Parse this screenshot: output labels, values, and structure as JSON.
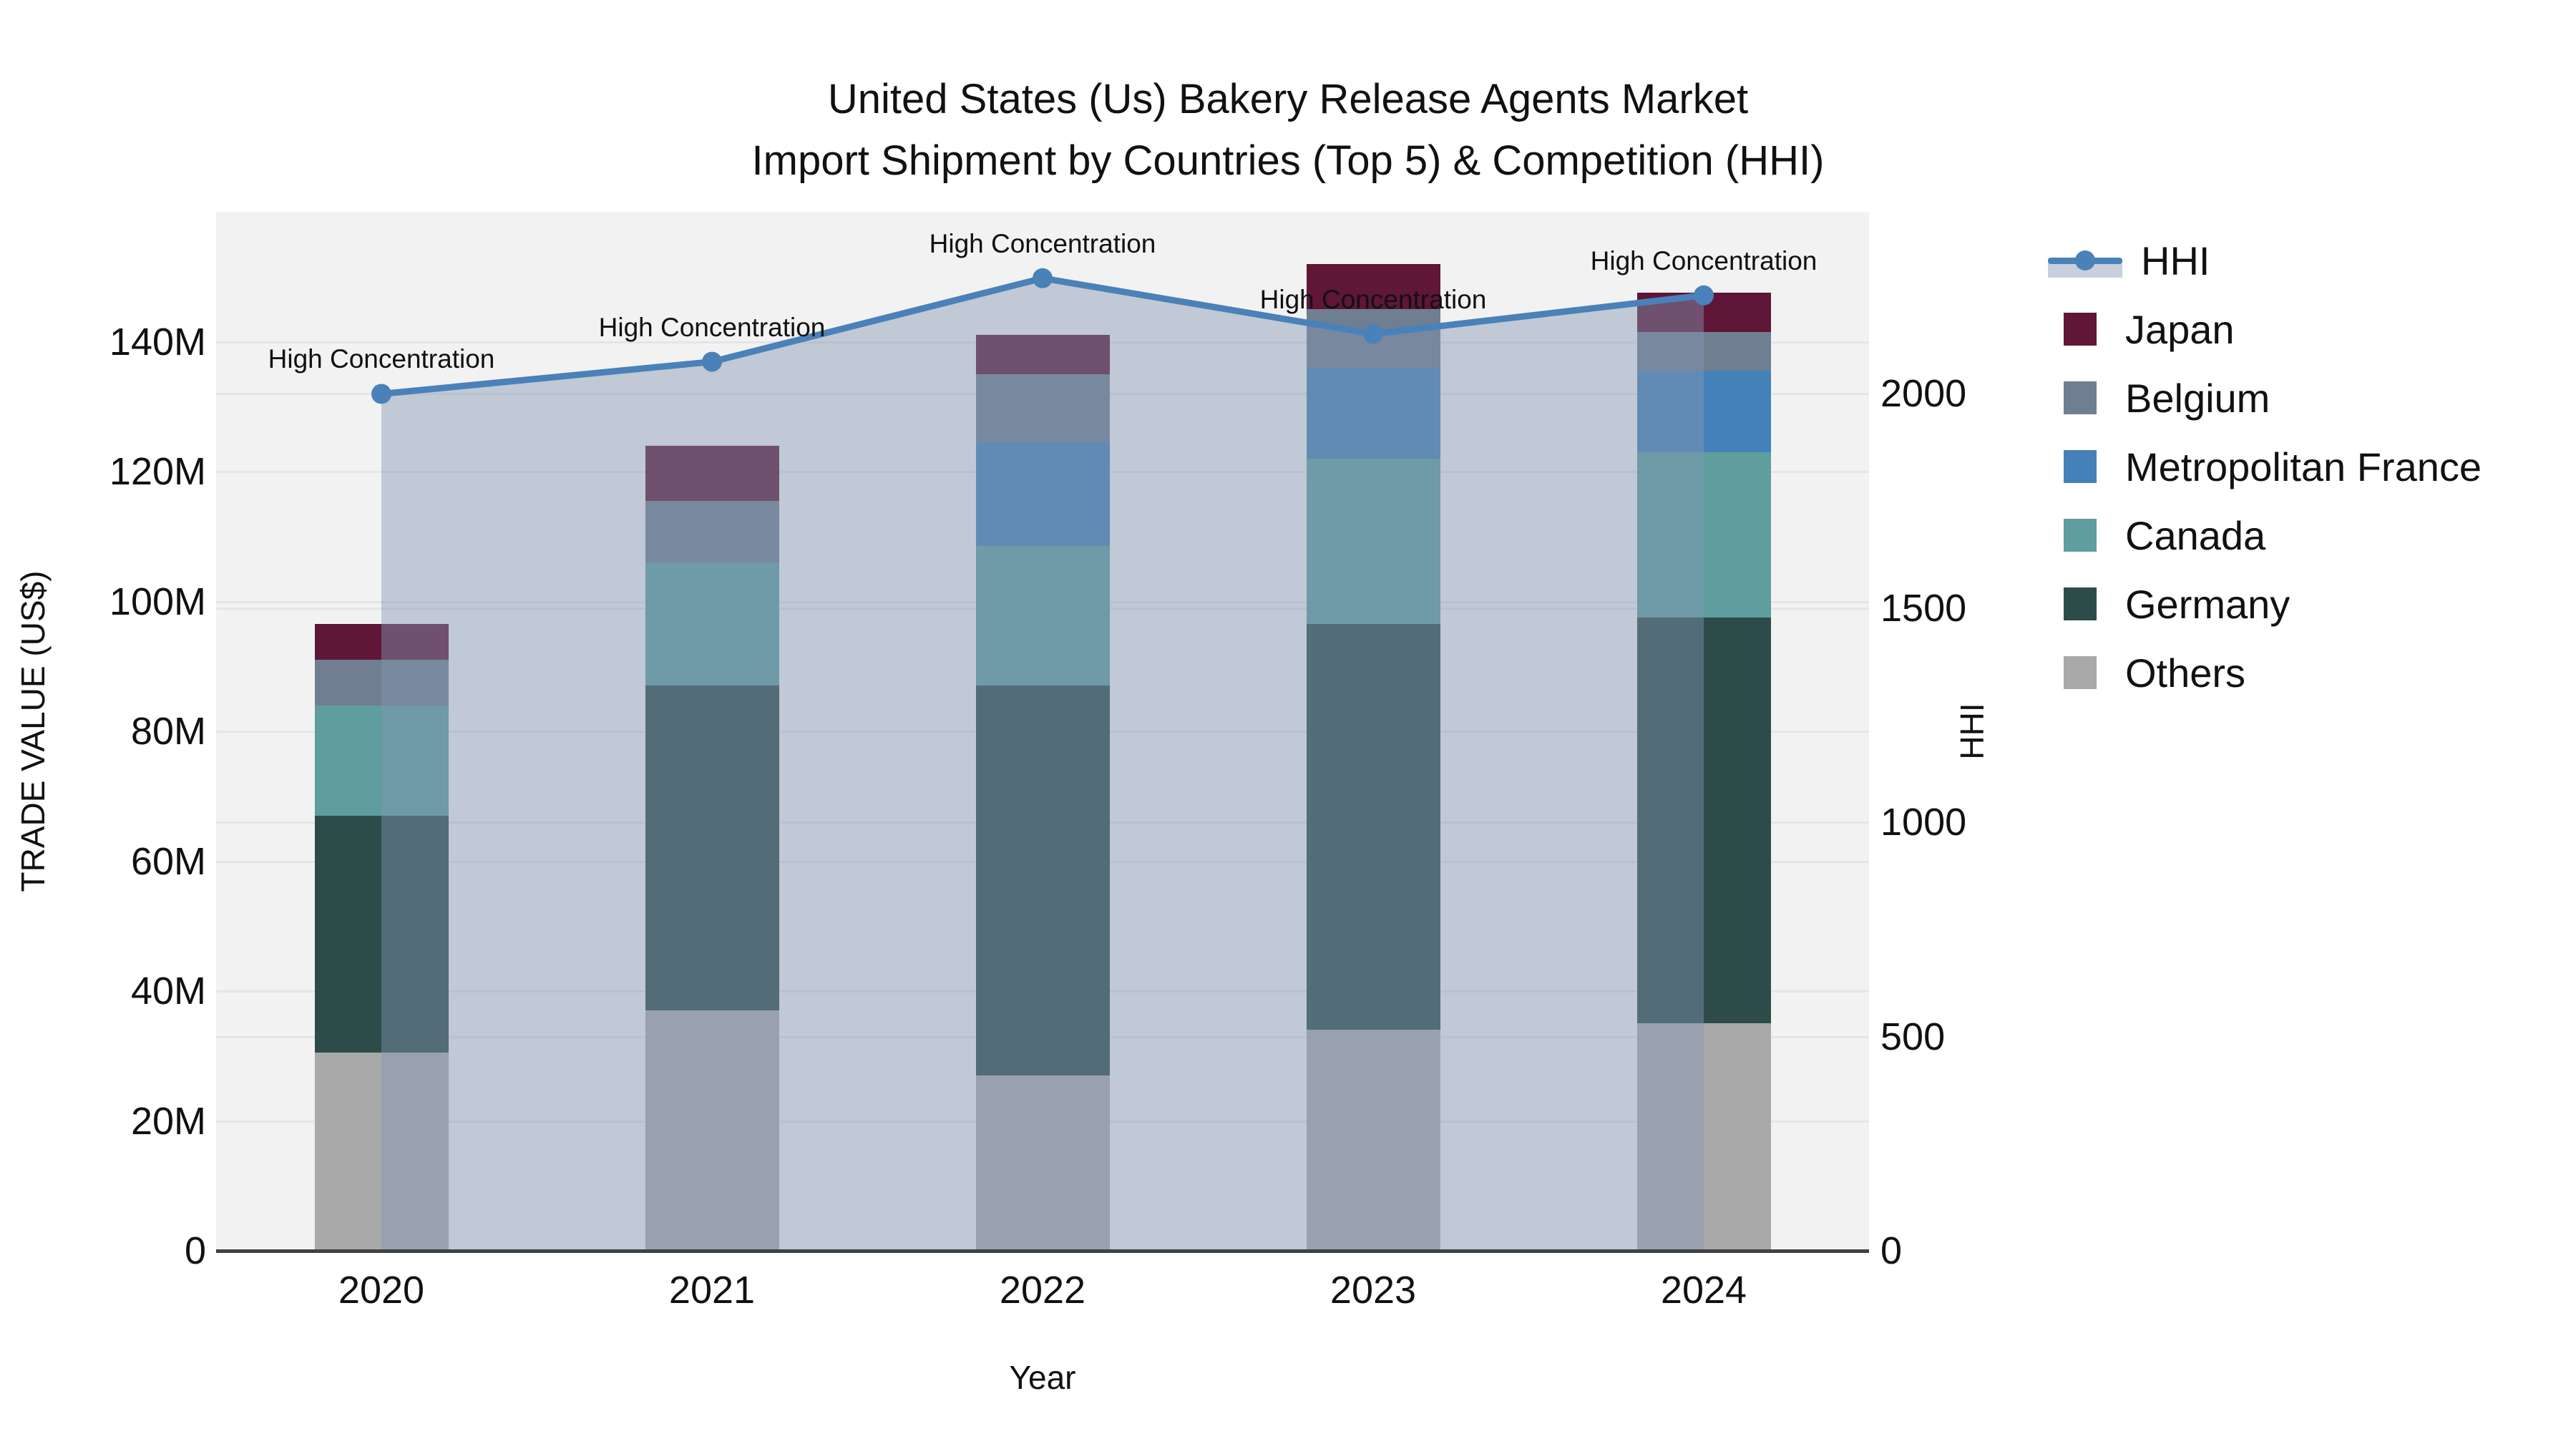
{
  "chart_data": {
    "type": "bar",
    "subtype": "stacked-bar-with-line",
    "title_line1": "United States (Us) Bakery Release Agents Market",
    "title_line2": "Import Shipment by Countries (Top 5) & Competition (HHI)",
    "xlabel": "Year",
    "categories": [
      "2020",
      "2021",
      "2022",
      "2023",
      "2024"
    ],
    "left_axis": {
      "label": "TRADE VALUE (US$)",
      "units": "millions USD",
      "tick_values": [
        0,
        20,
        40,
        60,
        80,
        100,
        120,
        140
      ],
      "tick_labels": [
        "0",
        "20M",
        "40M",
        "60M",
        "80M",
        "100M",
        "120M",
        "140M"
      ],
      "range": [
        0,
        160
      ]
    },
    "right_axis": {
      "label": "HHI",
      "tick_values": [
        0,
        500,
        1000,
        1500,
        2000
      ],
      "tick_labels": [
        "0",
        "500",
        "1000",
        "1500",
        "2000"
      ],
      "range": [
        0,
        2425
      ]
    },
    "series": [
      {
        "name": "Others",
        "color": "#a9a9a9",
        "values": [
          30.5,
          37,
          27,
          34,
          35
        ]
      },
      {
        "name": "Germany",
        "color": "#2d4c49",
        "values": [
          36.5,
          50,
          60,
          62.5,
          62.5
        ]
      },
      {
        "name": "Canada",
        "color": "#5f9d9e",
        "values": [
          17,
          19,
          21.5,
          25.5,
          25.5
        ]
      },
      {
        "name": "Metropolitan France",
        "color": "#4581b9",
        "values": [
          0,
          0,
          16,
          14,
          12.5
        ]
      },
      {
        "name": "Belgium",
        "color": "#6f7f91",
        "values": [
          7,
          9.5,
          10.5,
          9,
          6
        ]
      },
      {
        "name": "Japan",
        "color": "#5f1637",
        "values": [
          5.5,
          8.5,
          6,
          7,
          6
        ]
      }
    ],
    "bar_totals": [
      96.5,
      124,
      141,
      152,
      147.5
    ],
    "line": {
      "name": "HHI",
      "color": "#4a81b8",
      "area_fill": "rgba(130,150,178,0.45)",
      "values": [
        2000,
        2075,
        2270,
        2140,
        2230
      ],
      "point_annotation": "High Concentration"
    },
    "legend_order": [
      "HHI",
      "Japan",
      "Belgium",
      "Metropolitan France",
      "Canada",
      "Germany",
      "Others"
    ],
    "grid": "both-axes-horizontal",
    "legend_position": "right"
  }
}
